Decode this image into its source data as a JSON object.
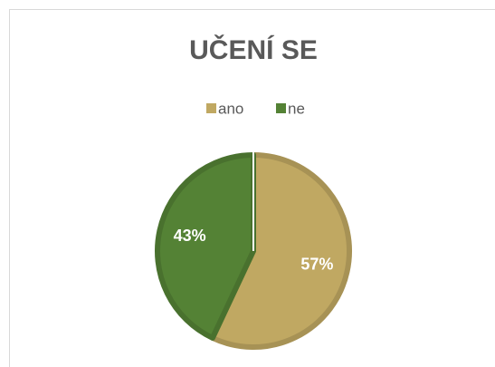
{
  "chart_data": {
    "type": "pie",
    "title": "UČENÍ SE",
    "categories": [
      "ano",
      "ne"
    ],
    "values": [
      57,
      43
    ],
    "value_labels": [
      "57%",
      "43%"
    ],
    "colors": [
      "#c0a862",
      "#548235"
    ],
    "legend": "top"
  }
}
